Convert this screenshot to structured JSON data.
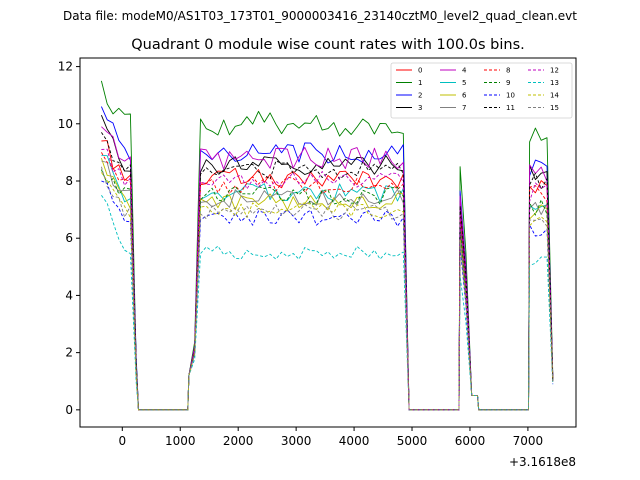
{
  "chart_data": {
    "type": "line",
    "suptitle": "Data file: modeM0/AS1T03_173T01_9000003416_23140cztM0_level2_quad_clean.evt",
    "title": "Quadrant 0 module wise count rates with 100.0s bins.",
    "x_offset_label": "+3.1618e8",
    "xlim": [
      -730,
      7830
    ],
    "ylim": [
      -0.6,
      12.3
    ],
    "xticks": [
      0,
      1000,
      2000,
      3000,
      4000,
      5000,
      6000,
      7000
    ],
    "xtick_labels": [
      "0",
      "1000",
      "2000",
      "3000",
      "4000",
      "5000",
      "6000",
      "7000"
    ],
    "yticks": [
      0,
      2,
      4,
      6,
      8,
      10,
      12
    ],
    "ytick_labels": [
      "0",
      "2",
      "4",
      "6",
      "8",
      "10",
      "12"
    ],
    "legend_position": "upper right",
    "legend_columns": 4,
    "time_segments": [
      {
        "start": -360,
        "end": 260,
        "step": 100
      },
      {
        "start": 280,
        "end": 1130,
        "step": 212.5
      },
      {
        "start": 1150,
        "end": 4930,
        "step": 100
      },
      {
        "start": 4950,
        "end": 5810,
        "step": 215
      },
      {
        "start": 5830,
        "end": 6130,
        "step": 100
      },
      {
        "start": 6150,
        "end": 7010,
        "step": 215
      },
      {
        "start": 7030,
        "end": 7430,
        "step": 100
      }
    ],
    "series": [
      {
        "name": "0",
        "color": "#ff0000",
        "dash": false,
        "level": 8.1,
        "start": 9.4,
        "end": 1.1
      },
      {
        "name": "1",
        "color": "#008000",
        "dash": false,
        "level": 10.0,
        "start": 11.5,
        "end": 1.2
      },
      {
        "name": "2",
        "color": "#0000ff",
        "dash": false,
        "level": 9.0,
        "start": 10.6,
        "end": 1.1
      },
      {
        "name": "3",
        "color": "#000000",
        "dash": false,
        "level": 8.6,
        "start": 10.3,
        "end": 1.1
      },
      {
        "name": "4",
        "color": "#bf00bf",
        "dash": false,
        "level": 8.8,
        "start": 9.9,
        "end": 1.1
      },
      {
        "name": "5",
        "color": "#00bfbf",
        "dash": false,
        "level": 7.6,
        "start": 8.9,
        "end": 1.0
      },
      {
        "name": "6",
        "color": "#bfbf00",
        "dash": false,
        "level": 7.3,
        "start": 8.8,
        "end": 1.0
      },
      {
        "name": "7",
        "color": "#808080",
        "dash": false,
        "level": 7.4,
        "start": 8.7,
        "end": 1.0
      },
      {
        "name": "8",
        "color": "#ff0000",
        "dash": true,
        "level": 7.9,
        "start": 9.0,
        "end": 1.0
      },
      {
        "name": "9",
        "color": "#008000",
        "dash": true,
        "level": 7.5,
        "start": 8.4,
        "end": 1.0
      },
      {
        "name": "10",
        "color": "#0000ff",
        "dash": true,
        "level": 6.7,
        "start": 8.0,
        "end": 0.9
      },
      {
        "name": "11",
        "color": "#000000",
        "dash": true,
        "level": 8.4,
        "start": 9.7,
        "end": 1.0
      },
      {
        "name": "12",
        "color": "#bf00bf",
        "dash": true,
        "level": 8.0,
        "start": 9.1,
        "end": 1.0
      },
      {
        "name": "13",
        "color": "#00bfbf",
        "dash": true,
        "level": 5.5,
        "start": 7.5,
        "end": 0.9
      },
      {
        "name": "14",
        "color": "#bfbf00",
        "dash": true,
        "level": 7.0,
        "start": 8.3,
        "end": 1.0
      },
      {
        "name": "15",
        "color": "#808080",
        "dash": true,
        "level": 6.9,
        "start": 8.5,
        "end": 1.0
      }
    ]
  }
}
